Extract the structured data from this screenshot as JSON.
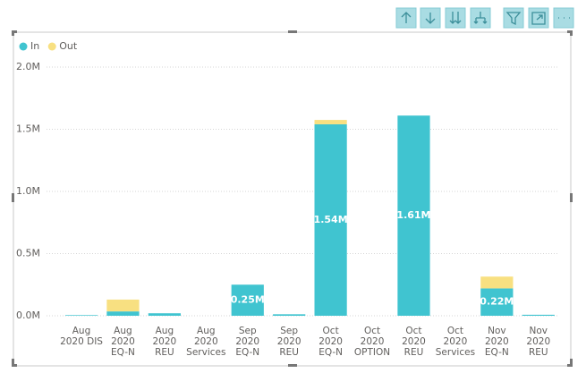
{
  "chart_data": {
    "type": "bar",
    "stacked": true,
    "categories": [
      "Aug 2020 DIS",
      "Aug 2020 EQ-N",
      "Aug 2020 REU",
      "Aug 2020 Services",
      "Sep 2020 EQ-N",
      "Sep 2020 REU",
      "Oct 2020 EQ-N",
      "Oct 2020 OPTION",
      "Oct 2020 REU",
      "Oct 2020 Services",
      "Nov 2020 EQ-N",
      "Nov 2020 REU"
    ],
    "series": [
      {
        "name": "In",
        "color": "#40c4d0",
        "values": [
          5000,
          35000,
          20000,
          0,
          250000,
          12000,
          1540000,
          0,
          1610000,
          0,
          220000,
          8000
        ],
        "value_labels": [
          null,
          null,
          null,
          null,
          "0.25M",
          null,
          "1.54M",
          null,
          "1.61M",
          null,
          "0.22M",
          null
        ]
      },
      {
        "name": "Out",
        "color": "#f8e081",
        "values": [
          0,
          95000,
          0,
          0,
          0,
          0,
          35000,
          0,
          0,
          0,
          95000,
          0
        ]
      }
    ],
    "ylim": [
      0,
      2000000
    ],
    "yticks": [
      {
        "value": 0,
        "label": "0.0M"
      },
      {
        "value": 500000,
        "label": "0.5M"
      },
      {
        "value": 1000000,
        "label": "1.0M"
      },
      {
        "value": 1500000,
        "label": "1.5M"
      },
      {
        "value": 2000000,
        "label": "2.0M"
      }
    ],
    "grid": true,
    "legend": "top-left"
  }
}
